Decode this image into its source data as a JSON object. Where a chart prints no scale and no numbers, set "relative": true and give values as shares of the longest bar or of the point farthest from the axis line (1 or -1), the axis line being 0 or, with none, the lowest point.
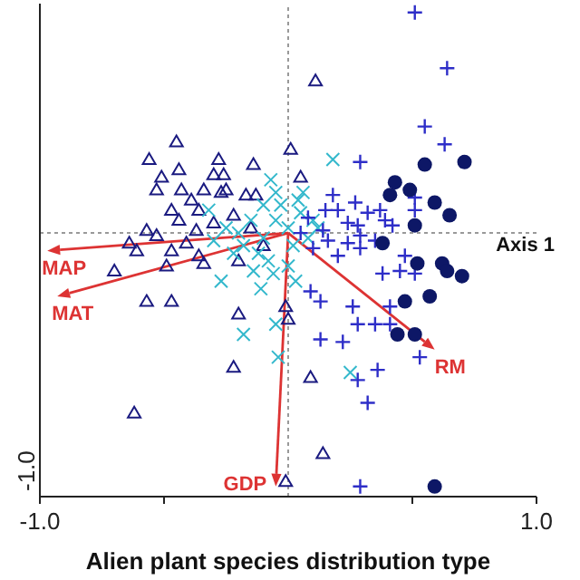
{
  "chart_data": {
    "type": "scatter",
    "xlabel": "Alien plant species distribution type",
    "xlim": [
      -1.0,
      1.0
    ],
    "xticks": [
      {
        "value": -1.0,
        "label": "-1.0"
      },
      {
        "value": -0.5,
        "label": null
      },
      {
        "value": 0.5,
        "label": null
      },
      {
        "value": 1.0,
        "label": "1.0"
      }
    ],
    "relative": true,
    "grid": false,
    "ref_lines": [
      {
        "axis": "y",
        "value": 0,
        "label": "Axis 1",
        "color": "#999999",
        "line_style": "dotted"
      },
      {
        "axis": "x",
        "value": 0,
        "label": null,
        "color": "#999999",
        "line_style": "dotted"
      }
    ],
    "annotations": [
      "-1.0",
      "MAP",
      "MAT",
      "GDP",
      "RM"
    ],
    "series": [
      {
        "marker": "triangle",
        "color": "#1a1a80",
        "x": [
          -0.45,
          -0.56,
          -0.28,
          -0.14,
          -0.51,
          -0.44,
          -0.3,
          -0.26,
          -0.53,
          -0.43,
          -0.34,
          -0.25,
          -0.17,
          -0.13,
          -0.47,
          -0.44,
          -0.39,
          -0.36,
          -0.27,
          -0.57,
          -0.53,
          -0.64,
          -0.61,
          -0.47,
          -0.41,
          -0.37,
          -0.36,
          -0.34,
          -0.49,
          -0.7,
          0.01,
          0.05,
          0.11,
          -0.57,
          -0.47,
          -0.2,
          -0.01,
          0.0,
          -0.22,
          -0.62,
          -0.01,
          0.09,
          0.14,
          -0.3,
          -0.22,
          -0.15,
          -0.1,
          -0.2
        ],
        "values": [
          0.36,
          0.29,
          0.29,
          0.27,
          0.22,
          0.25,
          0.23,
          0.23,
          0.17,
          0.17,
          0.17,
          0.17,
          0.15,
          0.15,
          0.09,
          0.05,
          0.13,
          0.09,
          0.16,
          0.01,
          -0.01,
          -0.04,
          -0.07,
          -0.07,
          -0.04,
          0.01,
          -0.09,
          -0.12,
          -0.13,
          -0.15,
          0.33,
          0.22,
          0.6,
          -0.27,
          -0.27,
          -0.32,
          -0.29,
          -0.34,
          -0.53,
          -0.71,
          -0.98,
          -0.57,
          -0.87,
          0.04,
          0.07,
          0.02,
          -0.05,
          -0.11
        ]
      },
      {
        "marker": "cross",
        "color": "#33b8cc",
        "x": [
          -0.07,
          -0.05,
          -0.32,
          0.18,
          -0.05,
          -0.18,
          -0.04,
          -0.11,
          -0.27,
          0.25,
          -0.2,
          -0.15,
          -0.1,
          -0.05,
          0.0,
          0.02,
          -0.08,
          -0.12,
          -0.18,
          -0.22,
          -0.25,
          -0.03,
          0.05,
          0.08,
          0.04,
          -0.06,
          -0.14,
          0.1,
          -0.3,
          0.0,
          0.03,
          -0.1,
          0.06,
          0.12
        ],
        "values": [
          0.21,
          0.16,
          0.09,
          0.29,
          -0.36,
          -0.4,
          -0.49,
          -0.22,
          -0.19,
          -0.55,
          0.0,
          0.05,
          -0.02,
          0.05,
          0.02,
          -0.05,
          -0.11,
          -0.08,
          -0.05,
          -0.08,
          0.02,
          0.11,
          0.08,
          -0.02,
          0.13,
          -0.16,
          -0.15,
          0.05,
          -0.03,
          -0.13,
          -0.19,
          0.11,
          0.16,
          0.02
        ]
      },
      {
        "marker": "plus",
        "color": "#2e2ec8",
        "x": [
          0.64,
          0.55,
          0.63,
          0.29,
          0.18,
          0.15,
          0.2,
          0.27,
          0.32,
          0.37,
          0.39,
          0.42,
          0.47,
          0.51,
          0.51,
          0.24,
          0.28,
          0.14,
          0.16,
          0.24,
          0.29,
          0.35,
          0.29,
          0.2,
          0.47,
          0.38,
          0.45,
          0.51,
          0.51,
          0.13,
          0.26,
          0.41,
          0.28,
          0.35,
          0.41,
          0.13,
          0.22,
          0.36,
          0.53,
          0.28,
          0.32,
          0.29,
          0.09,
          0.05,
          0.08,
          0.1
        ],
        "values": [
          0.65,
          0.42,
          0.35,
          0.28,
          0.15,
          0.09,
          0.09,
          0.12,
          0.08,
          0.09,
          0.05,
          0.03,
          null,
          0.14,
          0.09,
          0.04,
          0.03,
          0.01,
          -0.03,
          -0.04,
          -0.01,
          -0.03,
          -0.06,
          -0.09,
          -0.09,
          -0.16,
          -0.15,
          -0.16,
          0.87,
          -0.27,
          -0.29,
          -0.29,
          -0.36,
          -0.36,
          -0.36,
          -0.42,
          -0.43,
          -0.54,
          -0.49,
          -0.58,
          -0.67,
          -1,
          -0.23,
          0.0,
          0.06,
          -0.06
        ]
      },
      {
        "marker": "circle",
        "color": "#0d1766",
        "x": [
          0.55,
          0.71,
          0.43,
          0.41,
          0.49,
          0.59,
          0.65,
          0.51,
          0.38,
          0.52,
          0.62,
          0.64,
          0.7,
          0.47,
          0.57,
          0.44,
          0.51,
          0.59
        ],
        "values": [
          0.27,
          0.28,
          0.2,
          0.15,
          0.17,
          0.12,
          0.07,
          0.03,
          -0.04,
          -0.12,
          -0.12,
          -0.15,
          -0.17,
          -0.27,
          -0.25,
          -0.4,
          -0.4,
          -1
        ]
      }
    ]
  }
}
